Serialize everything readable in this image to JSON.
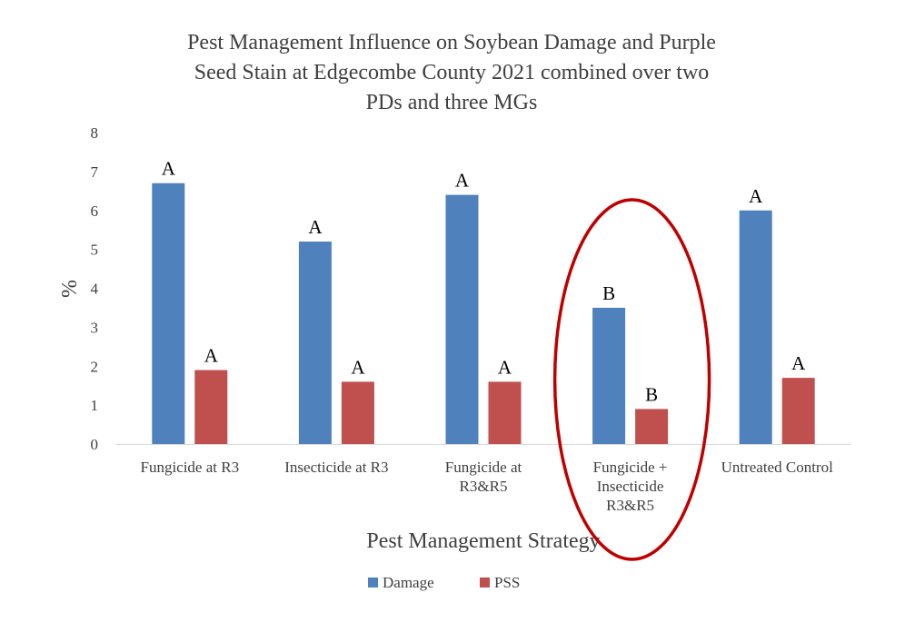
{
  "chart_data": {
    "type": "bar",
    "title_lines": [
      "Pest Management Influence on Soybean Damage and Purple",
      "Seed Stain at Edgecombe County 2021 combined over two",
      "PDs and three MGs"
    ],
    "xlabel": "Pest Management Strategy",
    "ylabel": "%",
    "ylim": [
      0,
      8
    ],
    "yticks": [
      0,
      1,
      2,
      3,
      4,
      5,
      6,
      7,
      8
    ],
    "grid": false,
    "legend_position": "bottom",
    "categories": [
      [
        "Fungicide at R3"
      ],
      [
        "Insecticide at R3"
      ],
      [
        "Fungicide at",
        "R3&R5"
      ],
      [
        "Fungicide +",
        "Insecticide",
        "R3&R5"
      ],
      [
        "Untreated Control"
      ]
    ],
    "series": [
      {
        "name": "Damage",
        "color": "#4f81bd",
        "values": [
          6.7,
          5.2,
          6.4,
          3.5,
          6.0
        ],
        "labels": [
          "A",
          "A",
          "A",
          "B",
          "A"
        ]
      },
      {
        "name": "PSS",
        "color": "#c0504d",
        "values": [
          1.9,
          1.6,
          1.6,
          0.9,
          1.7
        ],
        "labels": [
          "A",
          "A",
          "A",
          "B",
          "A"
        ]
      }
    ],
    "annotations": [
      {
        "type": "ellipse",
        "target_category_index": 3,
        "color": "#c00000"
      }
    ]
  }
}
